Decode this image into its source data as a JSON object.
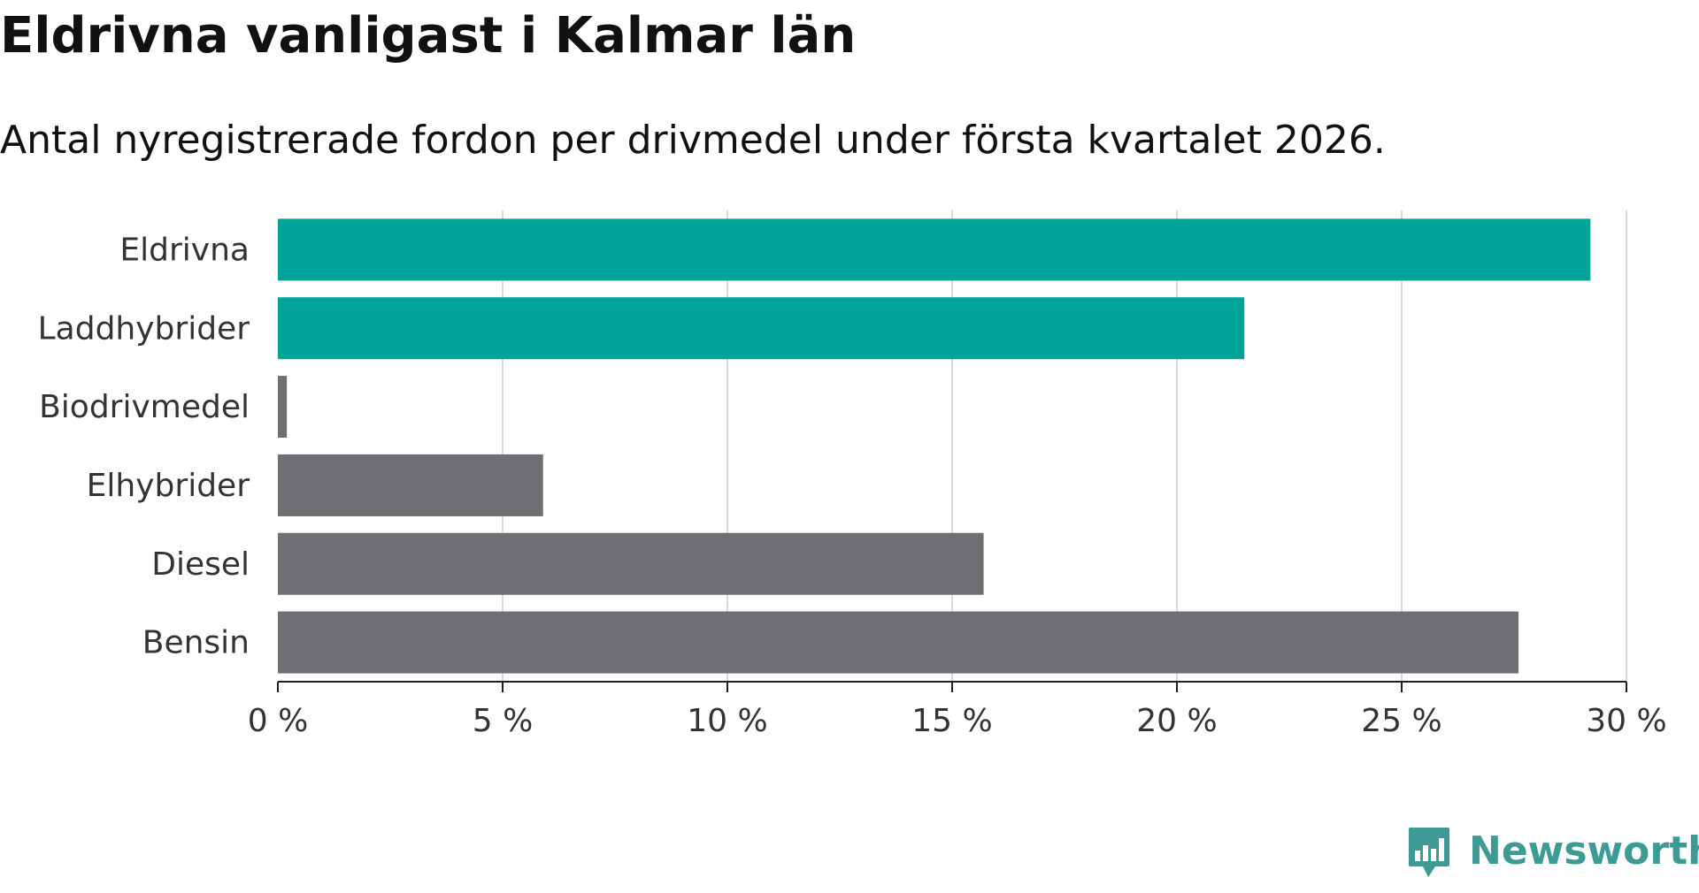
{
  "chart_data": {
    "type": "bar",
    "orientation": "horizontal",
    "title": "Eldrivna vanligast i Kalmar län",
    "subtitle": "Antal nyregistrerade fordon per drivmedel under första kvartalet 2026.",
    "categories": [
      "Eldrivna",
      "Laddhybrider",
      "Biodrivmedel",
      "Elhybrider",
      "Diesel",
      "Bensin"
    ],
    "values": [
      29.2,
      21.5,
      0.2,
      5.9,
      15.7,
      27.6
    ],
    "colors": [
      "#00a398",
      "#00a398",
      "#6f6e73",
      "#6f6e73",
      "#6f6e73",
      "#6f6e73"
    ],
    "xlim": [
      0,
      30
    ],
    "xticks": [
      0,
      5,
      10,
      15,
      20,
      25,
      30
    ],
    "xtick_labels": [
      "0 %",
      "5 %",
      "10 %",
      "15 %",
      "20 %",
      "25 %",
      "30 %"
    ],
    "xlabel": "",
    "ylabel": "",
    "grid": true
  },
  "brand": {
    "name": "Newsworthy",
    "color": "#3d9a94"
  },
  "colors": {
    "accent": "#00a398",
    "neutral": "#6f6e73",
    "grid": "#d9d9d9",
    "axis": "#222222"
  }
}
